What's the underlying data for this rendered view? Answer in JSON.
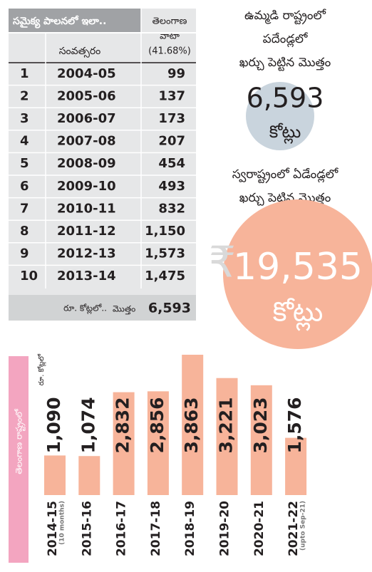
{
  "table": {
    "title": "సమైక్య పాలనలో ఇలా..",
    "year_header": "సంవత్సరం",
    "share_header": [
      "తెలంగాణ",
      "వాటా",
      "(41.68%)"
    ],
    "rows": [
      [
        "1",
        "2004-05",
        "99"
      ],
      [
        "2",
        "2005-06",
        "137"
      ],
      [
        "3",
        "2006-07",
        "173"
      ],
      [
        "4",
        "2007-08",
        "207"
      ],
      [
        "5",
        "2008-09",
        "454"
      ],
      [
        "6",
        "2009-10",
        "493"
      ],
      [
        "7",
        "2010-11",
        "832"
      ],
      [
        "8",
        "2011-12",
        "1,150"
      ],
      [
        "9",
        "2012-13",
        "1,573"
      ],
      [
        "10",
        "2013-14",
        "1,475"
      ]
    ],
    "footer": [
      "రూ. కోట్లలో..",
      "మొత్తం",
      "6,593"
    ]
  },
  "callouts": [
    {
      "text": [
        "ఉమ్మడి రాష్ట్రంలో",
        "పదేండ్లలో",
        "ఖర్చు పెట్టిన మొత్తం"
      ],
      "amount": "6,593",
      "unit": "కోట్లు"
    },
    {
      "text": [
        "స్వరాష్ట్రంలో ఏడేండ్లలో",
        "ఖర్చు పెట్టిన మొత్తం"
      ],
      "symbol": "₹",
      "amount": "19,535",
      "unit": "కోట్లు"
    }
  ],
  "chart_data": {
    "type": "bar",
    "side_label": "తెలంగాణ రాష్ట్రంలో",
    "unit_label": "రూ. కోట్లలో",
    "categories": [
      "2014-15",
      "2015-16",
      "2016-17",
      "2017-18",
      "2018-19",
      "2019-20",
      "2020-21",
      "2021-22"
    ],
    "category_notes": [
      "(10 months)",
      null,
      null,
      null,
      null,
      null,
      null,
      "(upto Sep-21)"
    ],
    "values": [
      1090,
      1074,
      2832,
      2856,
      3863,
      3221,
      3023,
      1576
    ],
    "value_labels": [
      "1,090",
      "1,074",
      "2,832",
      "2,856",
      "3,863",
      "3,221",
      "3,023",
      "1,576"
    ],
    "color": "#f7b49a",
    "ylim": [
      0,
      4000
    ]
  }
}
